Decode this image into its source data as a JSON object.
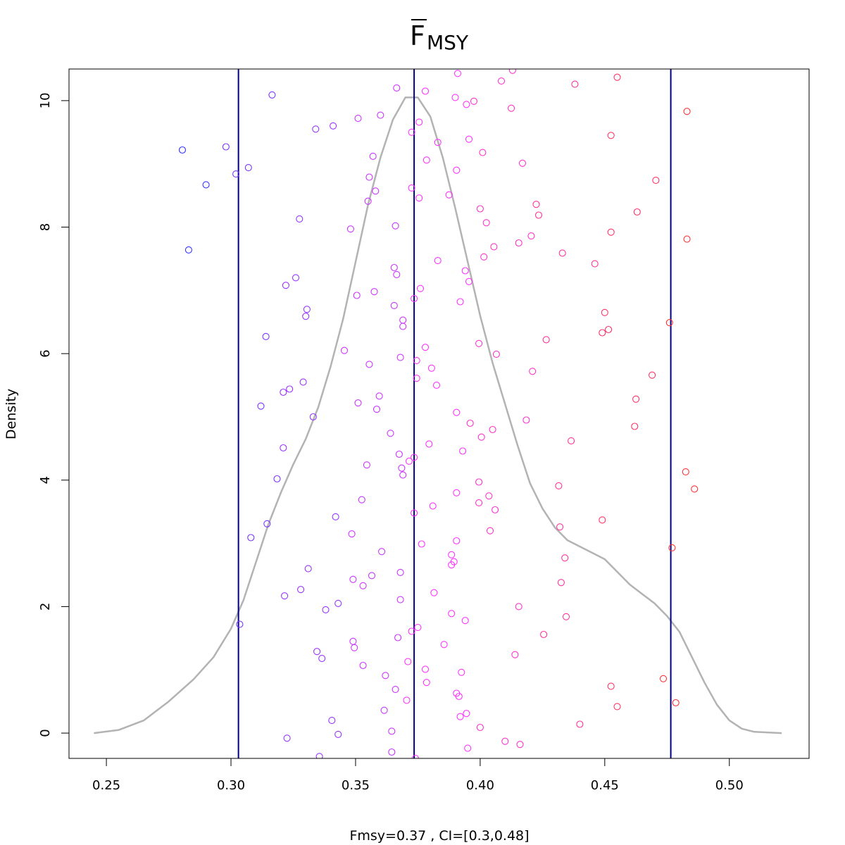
{
  "chart_data": {
    "type": "scatter",
    "title": {
      "main": "F",
      "subscript": "MSY",
      "overline": true
    },
    "xlabel": "Fmsy=0.37 , CI=[0.3,0.48]",
    "ylabel": "Density",
    "xlim": [
      0.235,
      0.532
    ],
    "ylim": [
      -0.4,
      10.5
    ],
    "xticks": [
      0.25,
      0.3,
      0.35,
      0.4,
      0.45,
      0.5
    ],
    "xtick_labels": [
      "0.25",
      "0.30",
      "0.35",
      "0.40",
      "0.45",
      "0.50"
    ],
    "yticks": [
      0,
      2,
      4,
      6,
      8,
      10
    ],
    "ytick_labels": [
      "0",
      "2",
      "4",
      "6",
      "8",
      "10"
    ],
    "grid": false,
    "density_curve": {
      "color": "#b3b3b3",
      "x": [
        0.245,
        0.255,
        0.265,
        0.275,
        0.285,
        0.293,
        0.3,
        0.305,
        0.31,
        0.315,
        0.32,
        0.325,
        0.33,
        0.335,
        0.34,
        0.345,
        0.35,
        0.355,
        0.36,
        0.365,
        0.37,
        0.375,
        0.38,
        0.385,
        0.39,
        0.395,
        0.4,
        0.405,
        0.41,
        0.415,
        0.42,
        0.425,
        0.43,
        0.435,
        0.44,
        0.445,
        0.45,
        0.455,
        0.46,
        0.465,
        0.47,
        0.475,
        0.48,
        0.485,
        0.49,
        0.495,
        0.5,
        0.505,
        0.51,
        0.521
      ],
      "y": [
        0.0,
        0.05,
        0.2,
        0.5,
        0.85,
        1.2,
        1.65,
        2.1,
        2.7,
        3.3,
        3.8,
        4.25,
        4.65,
        5.15,
        5.8,
        6.55,
        7.45,
        8.35,
        9.1,
        9.7,
        10.05,
        10.05,
        9.75,
        9.1,
        8.3,
        7.45,
        6.6,
        5.85,
        5.2,
        4.55,
        3.95,
        3.55,
        3.25,
        3.05,
        2.95,
        2.85,
        2.75,
        2.55,
        2.35,
        2.2,
        2.05,
        1.85,
        1.6,
        1.2,
        0.8,
        0.45,
        0.2,
        0.07,
        0.02,
        0.0
      ]
    },
    "vlines": {
      "color": "#000080",
      "x": [
        0.303,
        0.3735,
        0.4765
      ]
    },
    "point_colors": [
      "#3333ff",
      "#7a33ff",
      "#9933ff",
      "#cc33ff",
      "#ff33ff",
      "#ff33cc",
      "#ff3399",
      "#ff3366",
      "#ff3333"
    ],
    "points": [
      [
        0.2805,
        9.22
      ],
      [
        0.283,
        7.64
      ],
      [
        0.29,
        8.67
      ],
      [
        0.298,
        9.27
      ],
      [
        0.302,
        8.84
      ],
      [
        0.307,
        8.94
      ],
      [
        0.3035,
        1.72
      ],
      [
        0.308,
        3.09
      ],
      [
        0.312,
        5.17
      ],
      [
        0.314,
        6.27
      ],
      [
        0.3145,
        3.31
      ],
      [
        0.3165,
        10.09
      ],
      [
        0.3185,
        4.02
      ],
      [
        0.321,
        4.51
      ],
      [
        0.321,
        5.39
      ],
      [
        0.3215,
        2.17
      ],
      [
        0.322,
        7.08
      ],
      [
        0.3225,
        -0.08
      ],
      [
        0.3235,
        5.44
      ],
      [
        0.326,
        7.2
      ],
      [
        0.3275,
        8.13
      ],
      [
        0.328,
        2.27
      ],
      [
        0.329,
        5.55
      ],
      [
        0.33,
        6.59
      ],
      [
        0.3305,
        6.7
      ],
      [
        0.331,
        2.6
      ],
      [
        0.334,
        9.55
      ],
      [
        0.333,
        5.0
      ],
      [
        0.3345,
        1.29
      ],
      [
        0.3355,
        -0.37
      ],
      [
        0.3365,
        1.18
      ],
      [
        0.338,
        1.95
      ],
      [
        0.3405,
        0.2
      ],
      [
        0.341,
        9.6
      ],
      [
        0.342,
        3.42
      ],
      [
        0.343,
        2.05
      ],
      [
        0.343,
        -0.02
      ],
      [
        0.3455,
        6.05
      ],
      [
        0.348,
        7.97
      ],
      [
        0.3485,
        3.15
      ],
      [
        0.349,
        1.45
      ],
      [
        0.349,
        2.43
      ],
      [
        0.3495,
        1.35
      ],
      [
        0.3505,
        6.92
      ],
      [
        0.351,
        9.72
      ],
      [
        0.351,
        5.22
      ],
      [
        0.3525,
        3.69
      ],
      [
        0.353,
        2.33
      ],
      [
        0.353,
        1.07
      ],
      [
        0.3545,
        4.24
      ],
      [
        0.355,
        8.41
      ],
      [
        0.3555,
        8.79
      ],
      [
        0.3555,
        5.83
      ],
      [
        0.3565,
        2.49
      ],
      [
        0.357,
        9.12
      ],
      [
        0.3575,
        6.98
      ],
      [
        0.358,
        8.57
      ],
      [
        0.3585,
        5.12
      ],
      [
        0.3595,
        5.33
      ],
      [
        0.36,
        9.77
      ],
      [
        0.3605,
        2.87
      ],
      [
        0.3615,
        0.36
      ],
      [
        0.362,
        0.91
      ],
      [
        0.364,
        4.74
      ],
      [
        0.3645,
        0.03
      ],
      [
        0.3645,
        -0.3
      ],
      [
        0.3655,
        7.36
      ],
      [
        0.3655,
        6.76
      ],
      [
        0.366,
        8.02
      ],
      [
        0.366,
        0.69
      ],
      [
        0.3665,
        10.2
      ],
      [
        0.3665,
        7.25
      ],
      [
        0.367,
        1.51
      ],
      [
        0.3675,
        4.41
      ],
      [
        0.368,
        5.94
      ],
      [
        0.368,
        2.11
      ],
      [
        0.368,
        2.54
      ],
      [
        0.3685,
        4.19
      ],
      [
        0.369,
        6.53
      ],
      [
        0.369,
        6.43
      ],
      [
        0.369,
        4.08
      ],
      [
        0.3705,
        0.52
      ],
      [
        0.371,
        1.13
      ],
      [
        0.3715,
        4.3
      ],
      [
        0.3725,
        9.5
      ],
      [
        0.3725,
        8.62
      ],
      [
        0.3725,
        1.61
      ],
      [
        0.3735,
        4.36
      ],
      [
        0.3735,
        6.87
      ],
      [
        0.3735,
        3.48
      ],
      [
        0.374,
        -0.4
      ],
      [
        0.3745,
        5.89
      ],
      [
        0.3745,
        5.61
      ],
      [
        0.375,
        1.67
      ],
      [
        0.3755,
        9.66
      ],
      [
        0.3755,
        8.46
      ],
      [
        0.376,
        7.03
      ],
      [
        0.3765,
        2.99
      ],
      [
        0.378,
        10.15
      ],
      [
        0.378,
        6.1
      ],
      [
        0.378,
        1.01
      ],
      [
        0.3785,
        0.8
      ],
      [
        0.3785,
        9.06
      ],
      [
        0.3795,
        4.57
      ],
      [
        0.3805,
        5.77
      ],
      [
        0.381,
        3.59
      ],
      [
        0.3815,
        2.22
      ],
      [
        0.383,
        7.47
      ],
      [
        0.3825,
        5.5
      ],
      [
        0.383,
        9.34
      ],
      [
        0.3855,
        1.4
      ],
      [
        0.3875,
        8.51
      ],
      [
        0.3885,
        2.66
      ],
      [
        0.3885,
        2.82
      ],
      [
        0.3885,
        1.89
      ],
      [
        0.3895,
        2.71
      ],
      [
        0.39,
        10.05
      ],
      [
        0.3905,
        3.8
      ],
      [
        0.3905,
        5.07
      ],
      [
        0.3905,
        0.63
      ],
      [
        0.3905,
        8.9
      ],
      [
        0.3905,
        3.04
      ],
      [
        0.391,
        10.43
      ],
      [
        0.3915,
        0.58
      ],
      [
        0.392,
        6.82
      ],
      [
        0.392,
        0.26
      ],
      [
        0.3925,
        0.96
      ],
      [
        0.393,
        4.46
      ],
      [
        0.394,
        7.31
      ],
      [
        0.394,
        1.78
      ],
      [
        0.3945,
        0.31
      ],
      [
        0.3945,
        9.94
      ],
      [
        0.395,
        -0.24
      ],
      [
        0.3955,
        7.14
      ],
      [
        0.3955,
        9.39
      ],
      [
        0.396,
        4.9
      ],
      [
        0.3975,
        9.99
      ],
      [
        0.3995,
        3.97
      ],
      [
        0.3995,
        3.64
      ],
      [
        0.3995,
        6.16
      ],
      [
        0.4,
        8.29
      ],
      [
        0.4,
        0.09
      ],
      [
        0.4005,
        4.68
      ],
      [
        0.401,
        9.18
      ],
      [
        0.4015,
        7.53
      ],
      [
        0.4025,
        8.07
      ],
      [
        0.4035,
        3.75
      ],
      [
        0.404,
        3.2
      ],
      [
        0.405,
        4.8
      ],
      [
        0.4055,
        7.69
      ],
      [
        0.4065,
        5.99
      ],
      [
        0.406,
        3.53
      ],
      [
        0.4085,
        10.31
      ],
      [
        0.41,
        -0.13
      ],
      [
        0.4125,
        9.88
      ],
      [
        0.413,
        10.48
      ],
      [
        0.414,
        1.24
      ],
      [
        0.4155,
        7.75
      ],
      [
        0.4155,
        2.0
      ],
      [
        0.416,
        -0.18
      ],
      [
        0.417,
        9.01
      ],
      [
        0.4185,
        4.95
      ],
      [
        0.4205,
        7.86
      ],
      [
        0.421,
        5.72
      ],
      [
        0.4225,
        8.36
      ],
      [
        0.4235,
        8.19
      ],
      [
        0.4255,
        1.56
      ],
      [
        0.4265,
        6.22
      ],
      [
        0.4315,
        3.91
      ],
      [
        0.432,
        3.26
      ],
      [
        0.4325,
        2.38
      ],
      [
        0.433,
        7.59
      ],
      [
        0.434,
        2.77
      ],
      [
        0.4345,
        1.84
      ],
      [
        0.4365,
        4.62
      ],
      [
        0.438,
        10.26
      ],
      [
        0.44,
        0.14
      ],
      [
        0.446,
        7.42
      ],
      [
        0.449,
        6.33
      ],
      [
        0.449,
        3.37
      ],
      [
        0.45,
        6.65
      ],
      [
        0.4515,
        6.38
      ],
      [
        0.4525,
        7.92
      ],
      [
        0.4525,
        9.45
      ],
      [
        0.4525,
        0.74
      ],
      [
        0.455,
        10.37
      ],
      [
        0.455,
        0.42
      ],
      [
        0.462,
        4.85
      ],
      [
        0.4625,
        5.28
      ],
      [
        0.463,
        8.24
      ],
      [
        0.469,
        5.66
      ],
      [
        0.4705,
        8.74
      ],
      [
        0.4735,
        0.86
      ],
      [
        0.476,
        6.49
      ],
      [
        0.477,
        2.93
      ],
      [
        0.4785,
        0.48
      ],
      [
        0.4825,
        4.13
      ],
      [
        0.483,
        9.83
      ],
      [
        0.483,
        7.81
      ],
      [
        0.486,
        3.86
      ]
    ]
  }
}
